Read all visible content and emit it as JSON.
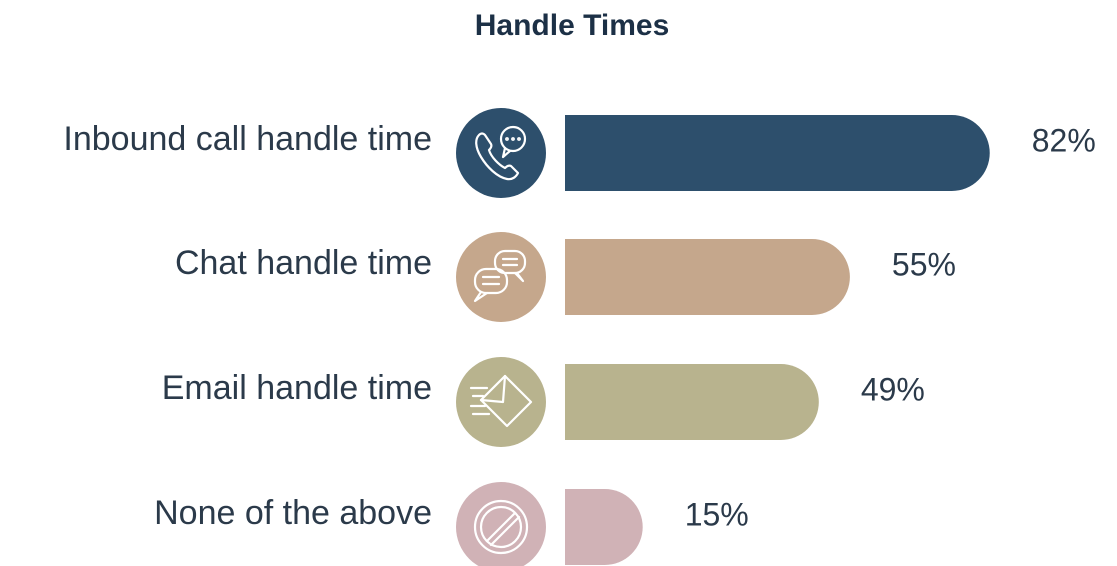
{
  "chart_data": {
    "type": "bar",
    "orientation": "horizontal",
    "title": "Handle Times",
    "categories": [
      "Inbound call handle time",
      "Chat handle time",
      "Email handle time",
      "None of the above"
    ],
    "values": [
      82,
      55,
      49,
      15
    ],
    "value_labels": [
      "82%",
      "55%",
      "49%",
      "15%"
    ],
    "colors": [
      "#2d4f6c",
      "#c5a78c",
      "#b8b38e",
      "#d0b2b6"
    ]
  }
}
